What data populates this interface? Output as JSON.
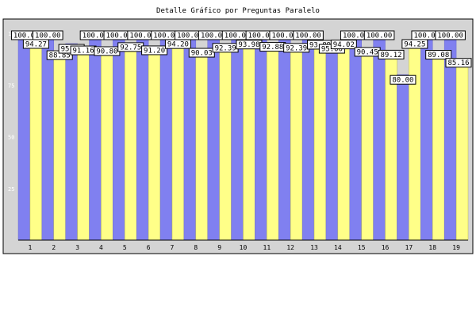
{
  "chart_data": {
    "type": "bar",
    "title": "Detalle Gráfico por Preguntas Paralelo",
    "categories": [
      "1",
      "2",
      "3",
      "4",
      "5",
      "6",
      "7",
      "8",
      "9",
      "10",
      "11",
      "12",
      "13",
      "14",
      "15",
      "16",
      "17",
      "18",
      "19"
    ],
    "ylim": [
      0,
      100
    ],
    "yticks": [
      "25",
      "50",
      "75",
      "100"
    ],
    "grid": false,
    "series": [
      {
        "values": [
          100,
          100,
          95,
          100,
          100,
          100,
          100,
          100,
          100,
          100,
          100,
          100,
          100,
          95,
          100,
          100,
          80,
          100,
          100
        ],
        "labels": [
          "100.0",
          "100.00",
          "95.00",
          "100.00",
          "100.00",
          "100.00",
          "100.00",
          "100.00",
          "100.00",
          "100.00",
          "100.00",
          "100.00",
          "100.00",
          "95.00",
          "100.00",
          "100.00",
          "80.00",
          "100.00",
          "100.00"
        ],
        "color": "#8080f0"
      },
      {
        "values": [
          94.27,
          88.85,
          91.16,
          90.8,
          92.75,
          91.2,
          94.2,
          90.03,
          92.39,
          93.98,
          92.88,
          92.39,
          93.89,
          94.02,
          90.45,
          89.12,
          94.25,
          89.08,
          85.16
        ],
        "labels": [
          "94.27",
          "88.85",
          "91.16",
          "90.80",
          "92.75",
          "91.20",
          "94.20",
          "90.03",
          "92.39",
          "93.98",
          "92.88",
          "92.39",
          "93.89",
          "94.02",
          "90.45",
          "89.12",
          "94.25",
          "89.08",
          "85.16"
        ],
        "color": "#ffff88"
      }
    ],
    "colors": {
      "background": "#d4d4d4",
      "primary_bar": "#8080f0",
      "secondary_bar": "#ffff88",
      "tick_label_dim": "#ffffff"
    }
  }
}
